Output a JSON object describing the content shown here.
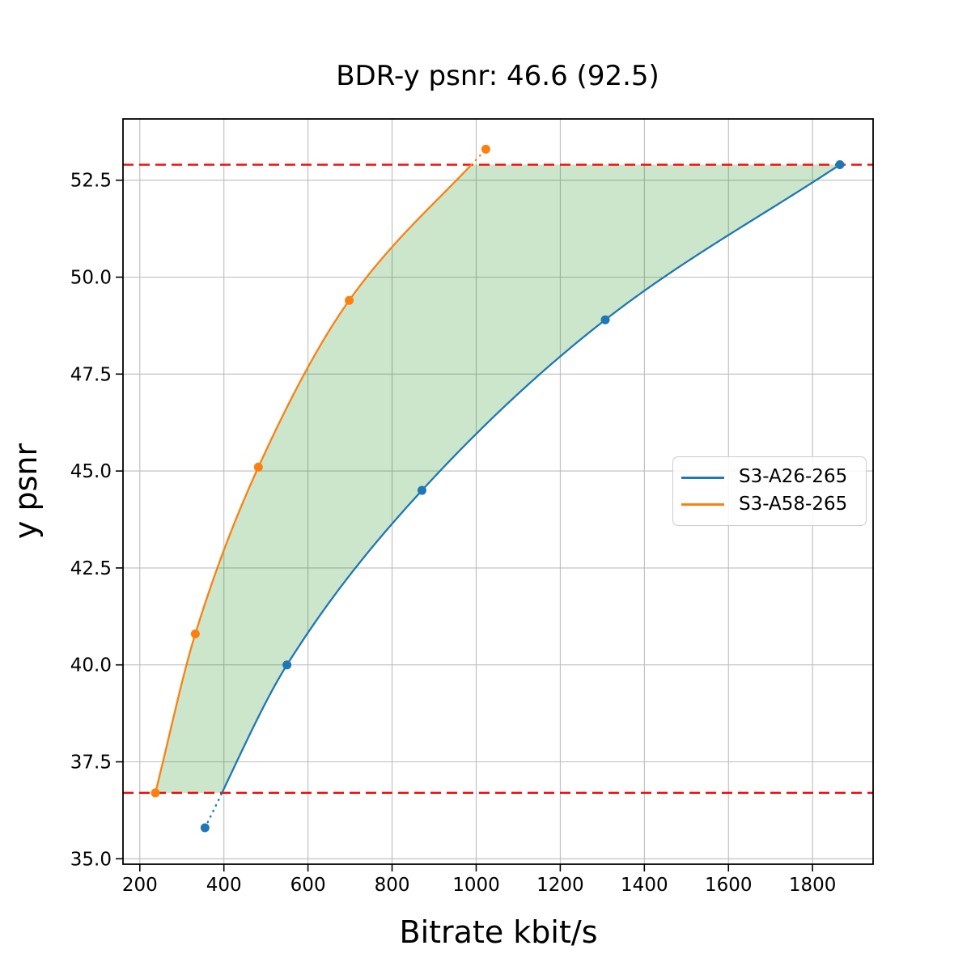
{
  "chart_data": {
    "type": "line",
    "title": "BDR-y psnr: 46.6 (92.5)",
    "xlabel": "Bitrate kbit/s",
    "ylabel": "y psnr",
    "xlim": [
      160,
      1944
    ],
    "ylim": [
      34.86,
      54.08
    ],
    "xticks": [
      200,
      400,
      600,
      800,
      1000,
      1200,
      1400,
      1600,
      1800
    ],
    "xtick_labels": [
      "200",
      "400",
      "600",
      "800",
      "1000",
      "1200",
      "1400",
      "1600",
      "1800"
    ],
    "yticks": [
      35.0,
      37.5,
      40.0,
      42.5,
      45.0,
      47.5,
      50.0,
      52.5
    ],
    "ytick_labels": [
      "35.0",
      "37.5",
      "40.0",
      "42.5",
      "45.0",
      "47.5",
      "50.0",
      "52.5"
    ],
    "grid": true,
    "grid_color": "#bdbdbd",
    "legend_position": "center right",
    "series": [
      {
        "name": "S3-A26-265",
        "color": "#1f77b4",
        "marker": "circle",
        "points": [
          [
            355,
            35.8
          ],
          [
            550,
            40.0
          ],
          [
            871,
            44.5
          ],
          [
            1307,
            48.9
          ],
          [
            1865,
            52.9
          ]
        ]
      },
      {
        "name": "S3-A58-265",
        "color": "#ff7f0e",
        "marker": "circle",
        "points": [
          [
            237,
            36.7
          ],
          [
            332,
            40.8
          ],
          [
            482,
            45.1
          ],
          [
            698,
            49.4
          ],
          [
            1023,
            53.3
          ]
        ]
      }
    ],
    "hlines": [
      {
        "y": 52.9,
        "color": "#ff0000",
        "style": "dashed"
      },
      {
        "y": 36.7,
        "color": "#ff0000",
        "style": "dashed"
      }
    ],
    "overlap_psnr_range": [
      36.7,
      52.9
    ],
    "shaded_region": {
      "fill_color": "rgba(0,128,0,0.2)",
      "description": "area between the two rate-distortion curves clipped to the overlap psnr range"
    },
    "curve_style": {
      "solid_within_overlap": true,
      "dotted_outside_overlap": true
    }
  }
}
